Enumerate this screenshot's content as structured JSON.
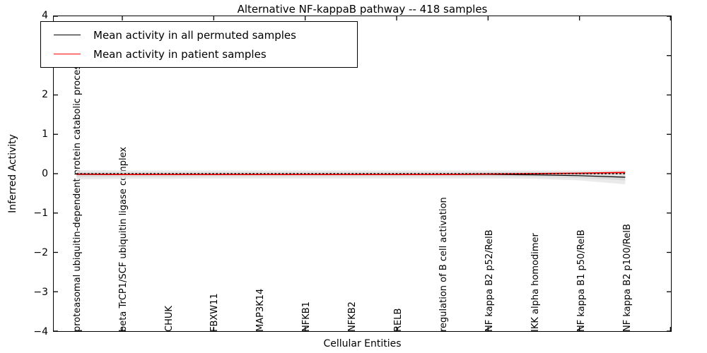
{
  "figure": {
    "title": "Alternative NF-kappaB pathway -- 418 samples",
    "xlabel": "Cellular Entities",
    "ylabel": "Inferred Activity",
    "sample_count": "418"
  },
  "legend": {
    "items": [
      {
        "label": "Mean activity in all permuted samples",
        "color": "#000000",
        "style": "solid"
      },
      {
        "label": "Mean activity in patient samples",
        "color": "#ff0000",
        "style": "solid"
      }
    ]
  },
  "axes": {
    "y_tick_labels": [
      "4",
      "3",
      "2",
      "1",
      "0",
      "−1",
      "−2",
      "−3",
      "−4"
    ],
    "y_tick_values": [
      4,
      3,
      2,
      1,
      0,
      -1,
      -2,
      -3,
      -4
    ]
  },
  "chart_data": {
    "type": "line",
    "title": "Alternative NF-kappaB pathway -- 418 samples",
    "xlabel": "Cellular Entities",
    "ylabel": "Inferred Activity",
    "grid": false,
    "legend_position": "upper left",
    "xlim": [
      0.5,
      14
    ],
    "ylim": [
      -4,
      4
    ],
    "x": [
      1,
      2,
      3,
      4,
      5,
      6,
      7,
      8,
      9,
      10,
      11,
      12,
      13
    ],
    "categories": [
      "proteasomal ubiquitin-dependent protein catabolic process",
      "beta TrCP1/SCF ubiquitin ligase complex",
      "CHUK",
      "FBXW11",
      "MAP3K14",
      "NFKB1",
      "NFKB2",
      "RELB",
      "regulation of B cell activation",
      "NF kappa B2 p52/RelB",
      "IKK alpha homodimer",
      "NF kappa B1 p50/RelB",
      "NF kappa B2 p100/RelB"
    ],
    "series": [
      {
        "name": "Mean activity in all permuted samples",
        "color": "#000000",
        "style": "solid",
        "width": 1.2,
        "values": [
          -0.02,
          -0.02,
          -0.02,
          -0.02,
          -0.02,
          -0.02,
          -0.02,
          -0.02,
          -0.02,
          -0.02,
          -0.03,
          -0.05,
          -0.09
        ]
      },
      {
        "name": "Mean activity in patient samples",
        "color": "#ff0000",
        "style": "solid",
        "width": 1.8,
        "values": [
          -0.01,
          -0.02,
          -0.02,
          -0.02,
          -0.02,
          -0.02,
          -0.02,
          -0.02,
          -0.02,
          -0.01,
          0.0,
          0.01,
          0.03
        ]
      },
      {
        "name": "zero-reference",
        "color": "#000000",
        "style": "dotted",
        "width": 1.6,
        "values": [
          0,
          0,
          0,
          0,
          0,
          0,
          0,
          0,
          0,
          0,
          0,
          0,
          0
        ]
      }
    ],
    "bands": [
      {
        "name": "permuted-spread-outer",
        "color": "#e6e6e6",
        "upper": [
          0.09,
          0.08,
          0.08,
          0.08,
          0.08,
          0.08,
          0.08,
          0.08,
          0.08,
          0.08,
          0.08,
          0.08,
          0.09
        ],
        "lower": [
          -0.15,
          -0.13,
          -0.13,
          -0.12,
          -0.12,
          -0.12,
          -0.12,
          -0.12,
          -0.12,
          -0.12,
          -0.13,
          -0.17,
          -0.27
        ]
      },
      {
        "name": "permuted-spread-inner",
        "color": "#d8d8d8",
        "upper": [
          0.04,
          0.04,
          0.04,
          0.04,
          0.04,
          0.04,
          0.04,
          0.04,
          0.04,
          0.04,
          0.04,
          0.04,
          0.05
        ],
        "lower": [
          -0.09,
          -0.08,
          -0.08,
          -0.07,
          -0.07,
          -0.07,
          -0.07,
          -0.07,
          -0.07,
          -0.07,
          -0.08,
          -0.11,
          -0.17
        ]
      }
    ],
    "x_spine_tick_positions": [
      2,
      4,
      6,
      8,
      10,
      12,
      14
    ]
  }
}
